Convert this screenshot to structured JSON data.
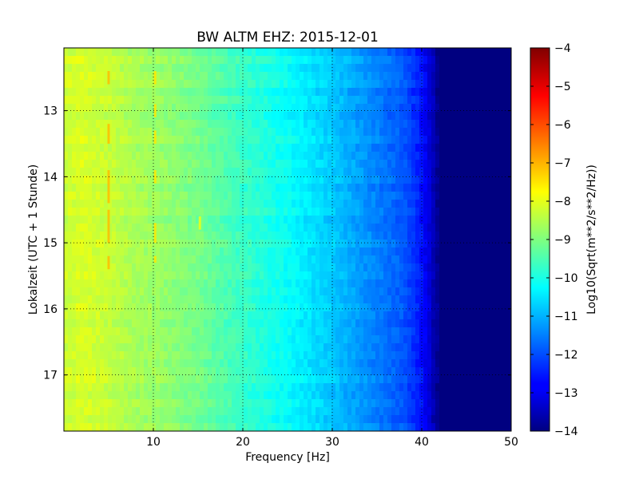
{
  "chart_data": {
    "type": "heatmap",
    "title": "BW ALTM EHZ: 2015-12-01",
    "xlabel": "Frequency [Hz]",
    "ylabel": "Lokalzeit (UTC + 1 Stunde)",
    "xlim": [
      0,
      50
    ],
    "ylim": [
      12.05,
      17.85
    ],
    "x_ticks": [
      10,
      20,
      30,
      40,
      50
    ],
    "y_ticks": [
      13,
      14,
      15,
      16,
      17
    ],
    "grid": true,
    "colormap": "jet",
    "colorbar": {
      "label": "Log10(Sqrt(m**2/s**2/Hz))",
      "range": [
        -14,
        -4
      ],
      "ticks": [
        -4,
        -5,
        -6,
        -7,
        -8,
        -9,
        -10,
        -11,
        -12,
        -13,
        -14
      ]
    },
    "spectrum_profile": {
      "frequency_hz": [
        0,
        2,
        5,
        8,
        10,
        15,
        20,
        25,
        30,
        35,
        38,
        40,
        41,
        42,
        50
      ],
      "log10_amplitude": [
        -8.3,
        -8.1,
        -8.3,
        -8.6,
        -8.7,
        -9.1,
        -9.7,
        -10.2,
        -10.8,
        -11.5,
        -11.9,
        -12.6,
        -13.2,
        -14,
        -14
      ]
    },
    "spectral_lines": [
      {
        "frequency_hz": 5,
        "time_ranges": [
          [
            12.4,
            12.6
          ],
          [
            13.2,
            13.5
          ],
          [
            13.9,
            14.4
          ],
          [
            14.5,
            15.0
          ],
          [
            15.2,
            15.4
          ]
        ]
      },
      {
        "frequency_hz": 10.2,
        "time_ranges": [
          [
            12.4,
            12.6
          ],
          [
            12.9,
            13.1
          ],
          [
            13.3,
            13.5
          ],
          [
            13.9,
            14.1
          ],
          [
            14.7,
            15.0
          ],
          [
            15.2,
            15.3
          ]
        ]
      },
      {
        "frequency_hz": 15.2,
        "time_ranges": [
          [
            14.6,
            14.8
          ]
        ]
      }
    ],
    "colors": {
      "colormap_stops": [
        "#000080",
        "#0000ff",
        "#00ffff",
        "#ffff00",
        "#ff0000",
        "#800000"
      ]
    }
  }
}
